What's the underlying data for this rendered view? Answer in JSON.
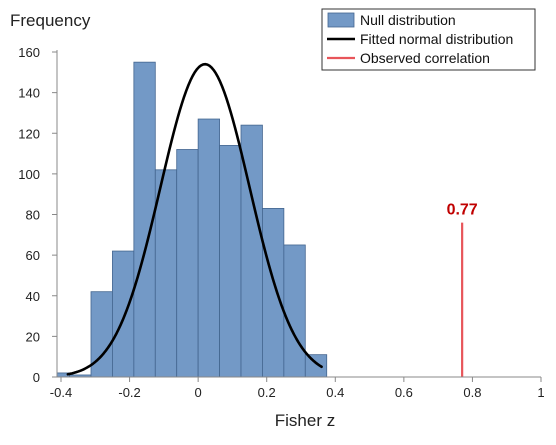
{
  "chart_data": {
    "type": "bar",
    "title": "",
    "xlabel": "Fisher z",
    "ylabel": "Frequency",
    "xlim": [
      -0.4,
      1
    ],
    "ylim": [
      0,
      160
    ],
    "x_ticks": [
      "-0.4",
      "-0.2",
      "0",
      "0.2",
      "0.4",
      "0.6",
      "0.8",
      "1"
    ],
    "y_ticks": [
      "0",
      "20",
      "40",
      "60",
      "80",
      "100",
      "120",
      "140",
      "160"
    ],
    "grid": false,
    "legend_position": "top-right",
    "bin_width": 0.0625,
    "bins": [
      {
        "x0": -0.4375,
        "x1": -0.375,
        "count": 2
      },
      {
        "x0": -0.375,
        "x1": -0.3125,
        "count": 1
      },
      {
        "x0": -0.3125,
        "x1": -0.25,
        "count": 42
      },
      {
        "x0": -0.25,
        "x1": -0.1875,
        "count": 62
      },
      {
        "x0": -0.1875,
        "x1": -0.125,
        "count": 155
      },
      {
        "x0": -0.125,
        "x1": -0.0625,
        "count": 102
      },
      {
        "x0": -0.0625,
        "x1": 0.0,
        "count": 112
      },
      {
        "x0": 0.0,
        "x1": 0.0625,
        "count": 127
      },
      {
        "x0": 0.0625,
        "x1": 0.125,
        "count": 114
      },
      {
        "x0": 0.125,
        "x1": 0.1875,
        "count": 124
      },
      {
        "x0": 0.1875,
        "x1": 0.25,
        "count": 83
      },
      {
        "x0": 0.25,
        "x1": 0.3125,
        "count": 65
      },
      {
        "x0": 0.3125,
        "x1": 0.375,
        "count": 11
      }
    ],
    "fitted_normal": {
      "mean": 0.02,
      "sd": 0.13,
      "peak": 154,
      "x_range": [
        -0.38,
        0.36
      ]
    },
    "observed_correlation": {
      "x": 0.77,
      "line_top": 76,
      "label": "0.77"
    },
    "series": [
      {
        "name": "Null distribution",
        "kind": "histogram"
      },
      {
        "name": "Fitted normal distribution",
        "kind": "line"
      },
      {
        "name": "Observed correlation",
        "kind": "vline"
      }
    ],
    "colors": {
      "bar_fill": "#7399c6",
      "bar_stroke": "#43658f",
      "normal_line": "#000000",
      "observed_line": "#e8555a",
      "observed_label": "#c00000",
      "axis": "#888888",
      "text": "#222222"
    }
  }
}
